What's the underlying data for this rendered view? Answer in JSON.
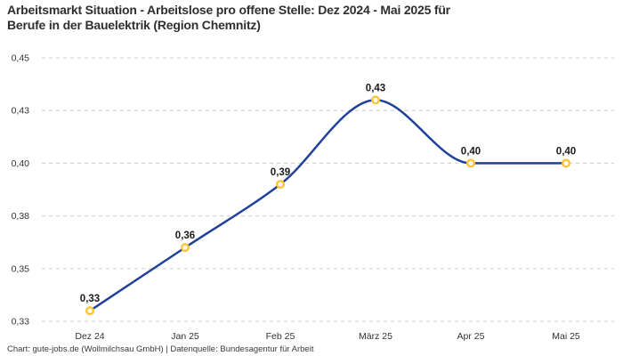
{
  "header": {
    "title_line1": "Arbeitsmarkt Situation - Arbeitslose pro offene Stelle: Dez 2024 - Mai 2025 für",
    "title_line2": "Berufe in der Bauelektrik (Region Chemnitz)"
  },
  "footer": {
    "credit": "Chart: gute-jobs.de (Wollmilchsau GmbH) | Datenquelle: Bundesagentur für Arbeit"
  },
  "chart_data": {
    "type": "line",
    "title": "Arbeitsmarkt Situation - Arbeitslose pro offene Stelle: Dez 2024 - Mai 2025 für Berufe in der Bauelektrik (Region Chemnitz)",
    "categories": [
      "Dez 24",
      "Jan 25",
      "Feb 25",
      "März 25",
      "Apr 25",
      "Mai 25"
    ],
    "values": [
      0.33,
      0.36,
      0.39,
      0.43,
      0.4,
      0.4
    ],
    "point_labels": [
      "0,33",
      "0,36",
      "0,39",
      "0,43",
      "0,40",
      "0,40"
    ],
    "y_ticks": [
      {
        "value": 0.45,
        "label": "0,45"
      },
      {
        "value": 0.425,
        "label": "0,43"
      },
      {
        "value": 0.4,
        "label": "0,40"
      },
      {
        "value": 0.375,
        "label": "0,38"
      },
      {
        "value": 0.35,
        "label": "0,35"
      },
      {
        "value": 0.325,
        "label": "0,33"
      }
    ],
    "ylim": [
      0.325,
      0.45
    ],
    "xlabel": "",
    "ylabel": "",
    "legend": "none",
    "grid": "horizontal-dashed",
    "interpolation": "monotone",
    "colors": {
      "line": "#21409a",
      "marker_ring": "#ffc233",
      "marker_fill": "#ffffff",
      "grid": "#cccccc",
      "tick_text": "#333333",
      "title_text": "#2f2f2f"
    }
  }
}
